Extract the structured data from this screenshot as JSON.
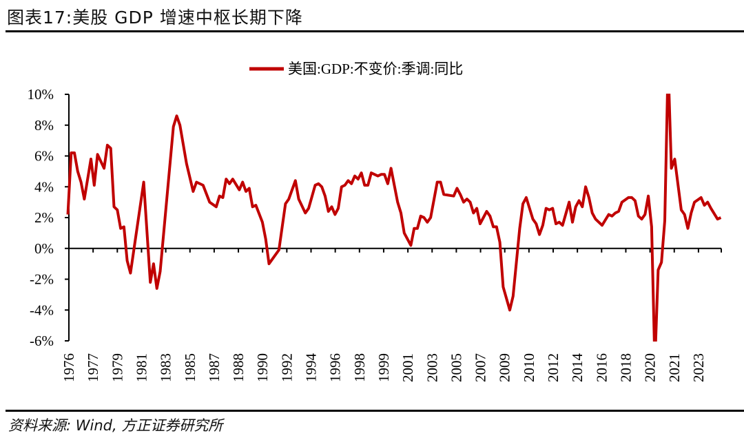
{
  "title": "图表17:美股 GDP 增速中枢长期下降",
  "source": "资料来源: Wind, 方正证券研究所",
  "chart_data": {
    "type": "line",
    "title": "",
    "xlabel": "",
    "ylabel": "",
    "ylim": [
      -6,
      10
    ],
    "yticks": [
      "10%",
      "8%",
      "6%",
      "4%",
      "2%",
      "0%",
      "-2%",
      "-4%",
      "-6%"
    ],
    "ytick_values": [
      10,
      8,
      6,
      4,
      2,
      0,
      -2,
      -4,
      -6
    ],
    "xtick_labels": [
      "1976",
      "1977",
      "1979",
      "1981",
      "1983",
      "1985",
      "1987",
      "1988",
      "1990",
      "1992",
      "1994",
      "1996",
      "1998",
      "1999",
      "2001",
      "2003",
      "2005",
      "2007",
      "2009",
      "2010",
      "2012",
      "2014",
      "2016",
      "2018",
      "2020",
      "2021",
      "2023"
    ],
    "grid": false,
    "legend_position": "top",
    "color": "#C00000",
    "series": [
      {
        "name": "美国:GDP:不变价:季调:同比",
        "x": [
          "1975Q4",
          "1976Q1",
          "1976Q2",
          "1976Q3",
          "1976Q4",
          "1977Q1",
          "1977Q3",
          "1977Q4",
          "1978Q1",
          "1978Q3",
          "1978Q4",
          "1979Q1",
          "1979Q2",
          "1979Q3",
          "1979Q4",
          "1980Q1",
          "1980Q2",
          "1980Q3",
          "1981Q3",
          "1982Q1",
          "1982Q2",
          "1982Q3",
          "1982Q4",
          "1983Q4",
          "1984Q1",
          "1984Q2",
          "1984Q4",
          "1985Q2",
          "1985Q3",
          "1986Q1",
          "1986Q3",
          "1987Q1",
          "1987Q2",
          "1987Q3",
          "1987Q4",
          "1988Q1",
          "1988Q2",
          "1988Q4",
          "1989Q1",
          "1989Q2",
          "1989Q3",
          "1989Q4",
          "1990Q1",
          "1990Q3",
          "1990Q4",
          "1991Q1",
          "1991Q4",
          "1992Q2",
          "1992Q3",
          "1993Q1",
          "1993Q2",
          "1993Q4",
          "1994Q1",
          "1994Q3",
          "1994Q4",
          "1995Q1",
          "1995Q2",
          "1995Q3",
          "1995Q4",
          "1996Q1",
          "1996Q2",
          "1996Q3",
          "1996Q4",
          "1997Q1",
          "1997Q2",
          "1997Q3",
          "1997Q4",
          "1998Q1",
          "1998Q2",
          "1998Q3",
          "1998Q4",
          "1999Q1",
          "1999Q2",
          "1999Q3",
          "1999Q4",
          "2000Q1",
          "2000Q2",
          "2000Q4",
          "2001Q1",
          "2001Q2",
          "2001Q4",
          "2002Q1",
          "2002Q2",
          "2002Q3",
          "2002Q4",
          "2003Q1",
          "2003Q2",
          "2003Q4",
          "2004Q1",
          "2004Q2",
          "2005Q1",
          "2005Q2",
          "2005Q3",
          "2005Q4",
          "2006Q1",
          "2006Q2",
          "2006Q3",
          "2006Q4",
          "2007Q1",
          "2007Q3",
          "2007Q4",
          "2008Q1",
          "2008Q2",
          "2008Q3",
          "2008Q4",
          "2009Q2",
          "2009Q3",
          "2010Q1",
          "2010Q2",
          "2010Q3",
          "2011Q1",
          "2011Q2",
          "2011Q3",
          "2011Q4",
          "2012Q1",
          "2012Q2",
          "2012Q3",
          "2012Q4",
          "2013Q1",
          "2013Q2",
          "2013Q4",
          "2014Q1",
          "2014Q2",
          "2014Q3",
          "2014Q4",
          "2015Q1",
          "2015Q2",
          "2015Q3",
          "2015Q4",
          "2016Q2",
          "2016Q4",
          "2017Q1",
          "2017Q2",
          "2017Q3",
          "2017Q4",
          "2018Q2",
          "2018Q3",
          "2018Q4",
          "2019Q1",
          "2019Q2",
          "2019Q3",
          "2019Q4",
          "2020Q1",
          "2020Q2",
          "2020Q3",
          "2020Q4",
          "2021Q1",
          "2021Q2",
          "2021Q3",
          "2021Q4",
          "2022Q2",
          "2022Q3",
          "2022Q4",
          "2023Q1",
          "2023Q2",
          "2023Q4",
          "2024Q1",
          "2024Q2",
          "2024Q3",
          "2025Q1",
          "2025Q2"
        ],
        "values": [
          2.2,
          6.2,
          6.2,
          5.0,
          4.3,
          3.2,
          5.8,
          4.1,
          6.1,
          5.2,
          6.7,
          6.5,
          2.7,
          2.5,
          1.3,
          1.4,
          -0.8,
          -1.6,
          4.3,
          -2.2,
          -1.0,
          -2.6,
          -1.5,
          7.9,
          8.6,
          8.0,
          5.5,
          3.7,
          4.3,
          4.1,
          3.0,
          2.7,
          3.4,
          3.3,
          4.5,
          4.2,
          4.5,
          3.8,
          4.3,
          3.7,
          3.9,
          2.7,
          2.8,
          1.7,
          0.6,
          -1.0,
          -0.1,
          2.9,
          3.2,
          4.4,
          3.2,
          2.3,
          2.6,
          4.1,
          4.2,
          4.0,
          3.4,
          2.4,
          2.7,
          2.2,
          2.6,
          4.0,
          4.1,
          4.4,
          4.2,
          4.7,
          4.5,
          4.9,
          4.1,
          4.1,
          4.9,
          4.8,
          4.7,
          4.8,
          4.8,
          4.2,
          5.2,
          3.0,
          2.3,
          1.0,
          0.2,
          1.3,
          1.3,
          2.1,
          2.0,
          1.7,
          2.0,
          4.3,
          4.3,
          3.5,
          3.4,
          3.9,
          3.5,
          3.0,
          3.2,
          3.0,
          2.3,
          2.6,
          1.6,
          2.4,
          2.1,
          1.4,
          1.4,
          0.4,
          -2.5,
          -4.0,
          -3.1,
          1.3,
          2.9,
          3.3,
          1.9,
          1.6,
          0.9,
          1.5,
          2.6,
          2.5,
          2.6,
          1.6,
          1.7,
          1.5,
          3.0,
          1.7,
          2.7,
          3.1,
          2.7,
          4.0,
          3.3,
          2.3,
          1.9,
          1.5,
          2.2,
          2.1,
          2.3,
          2.4,
          3.0,
          3.3,
          3.3,
          3.1,
          2.1,
          1.9,
          2.2,
          3.4,
          1.4,
          -7.5,
          -1.4,
          -0.9,
          1.8,
          12.0,
          5.2,
          5.8,
          2.5,
          2.2,
          1.3,
          2.3,
          3.0,
          3.3,
          2.8,
          3.0,
          2.6,
          1.9,
          2.0
        ]
      }
    ]
  }
}
